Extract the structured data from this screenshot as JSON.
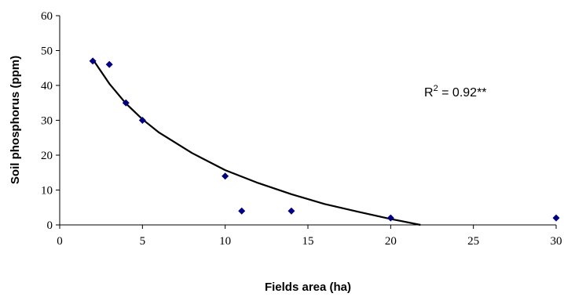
{
  "chart_data": {
    "type": "scatter",
    "xlabel": "Fields area (ha)",
    "ylabel": "Soil phosphorus (ppm)",
    "xlim": [
      0,
      30
    ],
    "ylim": [
      0,
      60
    ],
    "x_ticks": [
      "0",
      "5",
      "10",
      "15",
      "20",
      "25",
      "30"
    ],
    "y_ticks": [
      "0",
      "10",
      "20",
      "30",
      "40",
      "50",
      "60"
    ],
    "grid": false,
    "marker_color": "#000080",
    "line_color": "#000000",
    "series": [
      {
        "points": [
          {
            "x": 2,
            "y": 47
          },
          {
            "x": 3,
            "y": 46
          },
          {
            "x": 4,
            "y": 35
          },
          {
            "x": 5,
            "y": 30
          },
          {
            "x": 10,
            "y": 14
          },
          {
            "x": 11,
            "y": 4
          },
          {
            "x": 14,
            "y": 4
          },
          {
            "x": 20,
            "y": 2
          },
          {
            "x": 30,
            "y": 2
          }
        ]
      }
    ],
    "trendline": {
      "type": "logarithmic",
      "x_range": [
        2,
        21.8
      ],
      "points": [
        {
          "x": 2,
          "y": 47.5
        },
        {
          "x": 3,
          "y": 40.5
        },
        {
          "x": 4,
          "y": 34.8
        },
        {
          "x": 5,
          "y": 30.3
        },
        {
          "x": 6,
          "y": 26.5
        },
        {
          "x": 8,
          "y": 20.6
        },
        {
          "x": 10,
          "y": 15.7
        },
        {
          "x": 12,
          "y": 12.0
        },
        {
          "x": 14,
          "y": 8.8
        },
        {
          "x": 16,
          "y": 6.0
        },
        {
          "x": 18,
          "y": 3.8
        },
        {
          "x": 20,
          "y": 1.7
        },
        {
          "x": 21.8,
          "y": 0
        }
      ]
    },
    "annotation": {
      "base": "R",
      "superscript": "2",
      "rest": " = 0.92**"
    }
  }
}
